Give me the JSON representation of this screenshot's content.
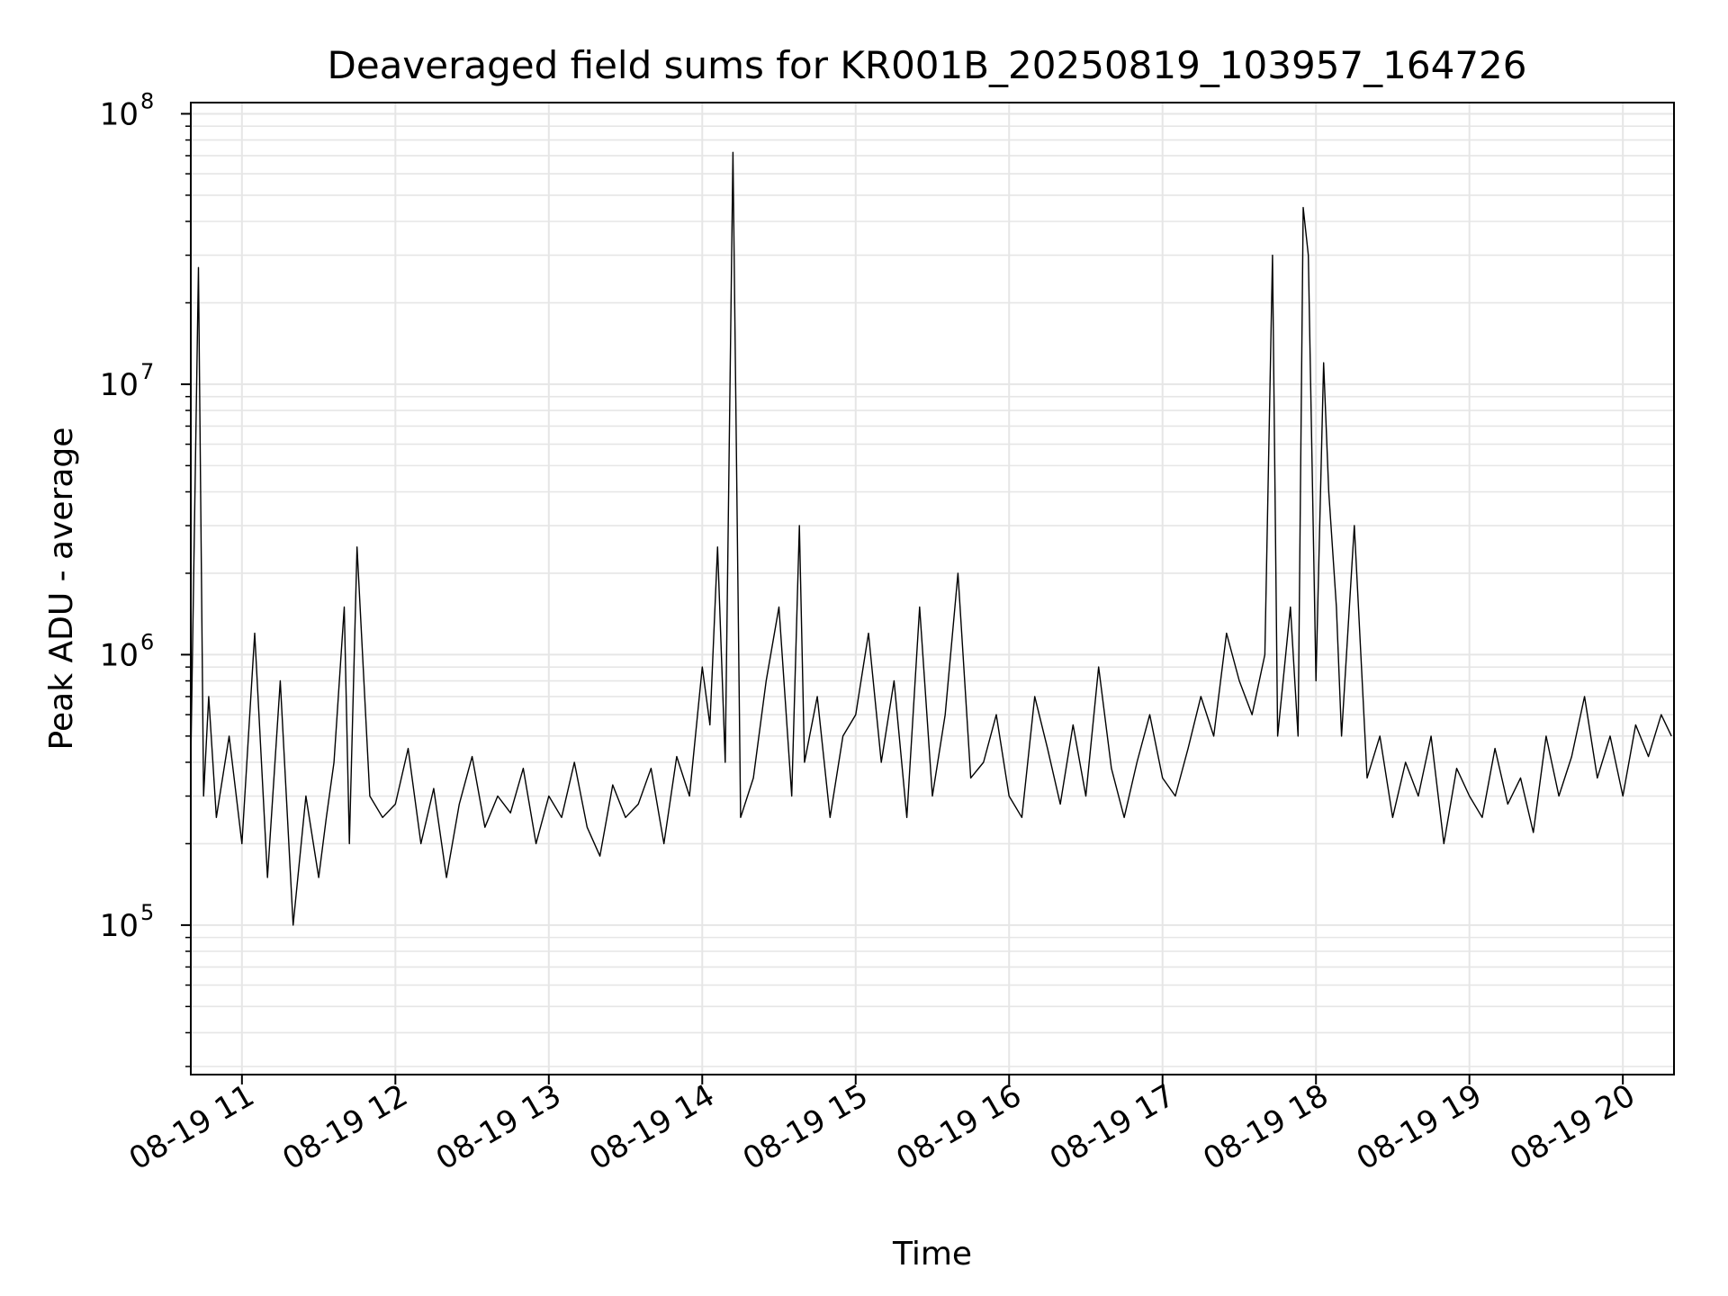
{
  "chart_data": {
    "type": "line",
    "title": "Deaveraged field sums for KR001B_20250819_103957_164726",
    "xlabel": "Time",
    "ylabel": "Peak ADU - average",
    "y_scale": "log",
    "ylim": [
      28000,
      110000000
    ],
    "xlim": [
      "2025-08-19T10:40:00",
      "2025-08-19T20:20:00"
    ],
    "grid": true,
    "line_color": "#000000",
    "x_ticks": [
      {
        "t": "2025-08-19T11:00:00",
        "label": "08-19 11"
      },
      {
        "t": "2025-08-19T12:00:00",
        "label": "08-19 12"
      },
      {
        "t": "2025-08-19T13:00:00",
        "label": "08-19 13"
      },
      {
        "t": "2025-08-19T14:00:00",
        "label": "08-19 14"
      },
      {
        "t": "2025-08-19T15:00:00",
        "label": "08-19 15"
      },
      {
        "t": "2025-08-19T16:00:00",
        "label": "08-19 16"
      },
      {
        "t": "2025-08-19T17:00:00",
        "label": "08-19 17"
      },
      {
        "t": "2025-08-19T18:00:00",
        "label": "08-19 18"
      },
      {
        "t": "2025-08-19T19:00:00",
        "label": "08-19 19"
      },
      {
        "t": "2025-08-19T20:00:00",
        "label": "08-19 20"
      }
    ],
    "y_ticks": [
      {
        "value": 100000,
        "base": "10",
        "exp": "5"
      },
      {
        "value": 1000000,
        "base": "10",
        "exp": "6"
      },
      {
        "value": 10000000,
        "base": "10",
        "exp": "7"
      },
      {
        "value": 100000000,
        "base": "10",
        "exp": "8"
      }
    ],
    "series": [
      {
        "x": [
          "2025-08-19T10:40:00",
          "2025-08-19T10:43:00",
          "2025-08-19T10:45:00",
          "2025-08-19T10:47:00",
          "2025-08-19T10:50:00",
          "2025-08-19T10:55:00",
          "2025-08-19T11:00:00",
          "2025-08-19T11:05:00",
          "2025-08-19T11:10:00",
          "2025-08-19T11:15:00",
          "2025-08-19T11:20:00",
          "2025-08-19T11:25:00",
          "2025-08-19T11:30:00",
          "2025-08-19T11:33:00",
          "2025-08-19T11:36:00",
          "2025-08-19T11:40:00",
          "2025-08-19T11:42:00",
          "2025-08-19T11:45:00",
          "2025-08-19T11:50:00",
          "2025-08-19T11:55:00",
          "2025-08-19T12:00:00",
          "2025-08-19T12:05:00",
          "2025-08-19T12:10:00",
          "2025-08-19T12:15:00",
          "2025-08-19T12:20:00",
          "2025-08-19T12:25:00",
          "2025-08-19T12:30:00",
          "2025-08-19T12:35:00",
          "2025-08-19T12:40:00",
          "2025-08-19T12:45:00",
          "2025-08-19T12:50:00",
          "2025-08-19T12:55:00",
          "2025-08-19T13:00:00",
          "2025-08-19T13:05:00",
          "2025-08-19T13:10:00",
          "2025-08-19T13:15:00",
          "2025-08-19T13:20:00",
          "2025-08-19T13:25:00",
          "2025-08-19T13:30:00",
          "2025-08-19T13:35:00",
          "2025-08-19T13:40:00",
          "2025-08-19T13:45:00",
          "2025-08-19T13:50:00",
          "2025-08-19T13:55:00",
          "2025-08-19T14:00:00",
          "2025-08-19T14:03:00",
          "2025-08-19T14:06:00",
          "2025-08-19T14:09:00",
          "2025-08-19T14:12:00",
          "2025-08-19T14:15:00",
          "2025-08-19T14:20:00",
          "2025-08-19T14:25:00",
          "2025-08-19T14:30:00",
          "2025-08-19T14:35:00",
          "2025-08-19T14:38:00",
          "2025-08-19T14:40:00",
          "2025-08-19T14:45:00",
          "2025-08-19T14:50:00",
          "2025-08-19T14:55:00",
          "2025-08-19T15:00:00",
          "2025-08-19T15:05:00",
          "2025-08-19T15:10:00",
          "2025-08-19T15:15:00",
          "2025-08-19T15:20:00",
          "2025-08-19T15:25:00",
          "2025-08-19T15:30:00",
          "2025-08-19T15:35:00",
          "2025-08-19T15:40:00",
          "2025-08-19T15:45:00",
          "2025-08-19T15:50:00",
          "2025-08-19T15:55:00",
          "2025-08-19T16:00:00",
          "2025-08-19T16:05:00",
          "2025-08-19T16:10:00",
          "2025-08-19T16:15:00",
          "2025-08-19T16:20:00",
          "2025-08-19T16:25:00",
          "2025-08-19T16:30:00",
          "2025-08-19T16:35:00",
          "2025-08-19T16:40:00",
          "2025-08-19T16:45:00",
          "2025-08-19T16:50:00",
          "2025-08-19T16:55:00",
          "2025-08-19T17:00:00",
          "2025-08-19T17:05:00",
          "2025-08-19T17:10:00",
          "2025-08-19T17:15:00",
          "2025-08-19T17:20:00",
          "2025-08-19T17:25:00",
          "2025-08-19T17:30:00",
          "2025-08-19T17:35:00",
          "2025-08-19T17:40:00",
          "2025-08-19T17:43:00",
          "2025-08-19T17:45:00",
          "2025-08-19T17:50:00",
          "2025-08-19T17:53:00",
          "2025-08-19T17:55:00",
          "2025-08-19T17:57:00",
          "2025-08-19T18:00:00",
          "2025-08-19T18:03:00",
          "2025-08-19T18:05:00",
          "2025-08-19T18:08:00",
          "2025-08-19T18:10:00",
          "2025-08-19T18:15:00",
          "2025-08-19T18:20:00",
          "2025-08-19T18:25:00",
          "2025-08-19T18:30:00",
          "2025-08-19T18:35:00",
          "2025-08-19T18:40:00",
          "2025-08-19T18:45:00",
          "2025-08-19T18:50:00",
          "2025-08-19T18:55:00",
          "2025-08-19T19:00:00",
          "2025-08-19T19:05:00",
          "2025-08-19T19:10:00",
          "2025-08-19T19:15:00",
          "2025-08-19T19:20:00",
          "2025-08-19T19:25:00",
          "2025-08-19T19:30:00",
          "2025-08-19T19:35:00",
          "2025-08-19T19:40:00",
          "2025-08-19T19:45:00",
          "2025-08-19T19:50:00",
          "2025-08-19T19:55:00",
          "2025-08-19T20:00:00",
          "2025-08-19T20:05:00",
          "2025-08-19T20:10:00",
          "2025-08-19T20:15:00",
          "2025-08-19T20:19:00"
        ],
        "y": [
          400000,
          27000000,
          300000,
          700000,
          250000,
          500000,
          200000,
          1200000,
          150000,
          800000,
          100000,
          300000,
          150000,
          250000,
          400000,
          1500000,
          200000,
          2500000,
          300000,
          250000,
          280000,
          450000,
          200000,
          320000,
          150000,
          280000,
          420000,
          230000,
          300000,
          260000,
          380000,
          200000,
          300000,
          250000,
          400000,
          230000,
          180000,
          330000,
          250000,
          280000,
          380000,
          200000,
          420000,
          300000,
          900000,
          550000,
          2500000,
          400000,
          72000000,
          250000,
          350000,
          800000,
          1500000,
          300000,
          3000000,
          400000,
          700000,
          250000,
          500000,
          600000,
          1200000,
          400000,
          800000,
          250000,
          1500000,
          300000,
          600000,
          2000000,
          350000,
          400000,
          600000,
          300000,
          250000,
          700000,
          450000,
          280000,
          550000,
          300000,
          900000,
          380000,
          250000,
          400000,
          600000,
          350000,
          300000,
          450000,
          700000,
          500000,
          1200000,
          800000,
          600000,
          1000000,
          30000000,
          500000,
          1500000,
          500000,
          45000000,
          30000000,
          800000,
          12000000,
          4000000,
          1500000,
          500000,
          3000000,
          350000,
          500000,
          250000,
          400000,
          300000,
          500000,
          200000,
          380000,
          300000,
          250000,
          450000,
          280000,
          350000,
          220000,
          500000,
          300000,
          420000,
          700000,
          350000,
          500000,
          300000,
          550000,
          420000,
          600000,
          500000
        ]
      }
    ]
  }
}
